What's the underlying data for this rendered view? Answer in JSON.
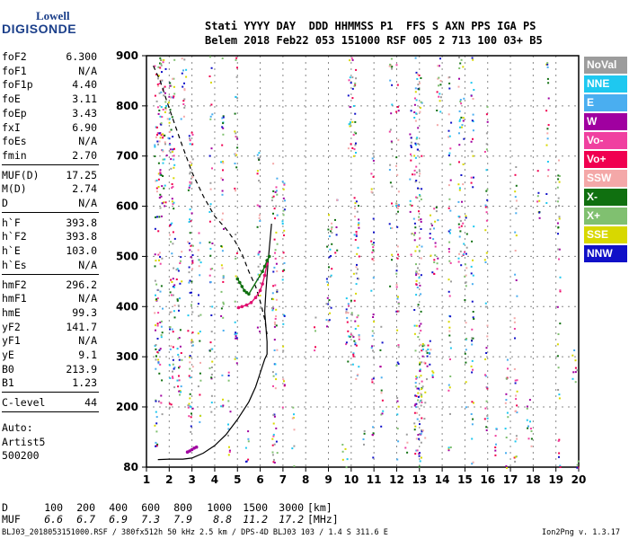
{
  "logo": {
    "line1": "Lowell",
    "line2": "DIGISONDE"
  },
  "header": {
    "line1": "Stati YYYY DAY  DDD HHMMSS P1  FFS S AXN PPS IGA PS",
    "line2": "Belem 2018 Feb22 053 151000 RSF 005 2 713 100 03+ B5"
  },
  "params": [
    [
      {
        "label": "foF2",
        "value": "6.300"
      },
      {
        "label": "foF1",
        "value": "N/A"
      },
      {
        "label": "foF1p",
        "value": "4.40"
      },
      {
        "label": "foE",
        "value": "3.11"
      },
      {
        "label": "foEp",
        "value": "3.43"
      },
      {
        "label": "fxI",
        "value": "6.90"
      },
      {
        "label": "foEs",
        "value": "N/A"
      },
      {
        "label": "fmin",
        "value": "2.70"
      }
    ],
    [
      {
        "label": "MUF(D)",
        "value": "17.25"
      },
      {
        "label": "M(D)",
        "value": "2.74"
      },
      {
        "label": "D",
        "value": "N/A"
      }
    ],
    [
      {
        "label": "h`F",
        "value": "393.8"
      },
      {
        "label": "h`F2",
        "value": "393.8"
      },
      {
        "label": "h`E",
        "value": "103.0"
      },
      {
        "label": "h`Es",
        "value": "N/A"
      }
    ],
    [
      {
        "label": "hmF2",
        "value": "296.2"
      },
      {
        "label": "hmF1",
        "value": "N/A"
      },
      {
        "label": "hmE",
        "value": "99.3"
      },
      {
        "label": "yF2",
        "value": "141.7"
      },
      {
        "label": "yF1",
        "value": "N/A"
      },
      {
        "label": "yE",
        "value": "9.1"
      },
      {
        "label": "B0",
        "value": "213.9"
      },
      {
        "label": "B1",
        "value": "1.23"
      }
    ],
    [
      {
        "label": "C-level",
        "value": "44"
      }
    ]
  ],
  "autoscaling": {
    "line1": "Auto:",
    "line2": "Artist5",
    "line3": "500200"
  },
  "legend": [
    {
      "label": "NoVal",
      "color": "#9c9c9c"
    },
    {
      "label": "NNE",
      "color": "#1ec8f0"
    },
    {
      "label": "E",
      "color": "#4aaef0"
    },
    {
      "label": "W",
      "color": "#a000a0"
    },
    {
      "label": "Vo-",
      "color": "#f040a0"
    },
    {
      "label": "Vo+",
      "color": "#f00050"
    },
    {
      "label": "SSW",
      "color": "#f4a8a8"
    },
    {
      "label": "X-",
      "color": "#107010"
    },
    {
      "label": "X+",
      "color": "#80c070"
    },
    {
      "label": "SSE",
      "color": "#d8d800"
    },
    {
      "label": "NNW",
      "color": "#1010c8"
    }
  ],
  "mufTable": {
    "dLabel": "D",
    "mufLabel": "MUF",
    "distances": [
      "100",
      "200",
      "400",
      "600",
      "800",
      "1000",
      "1500",
      "3000"
    ],
    "dUnit": "[km]",
    "mufs": [
      "6.6",
      "6.7",
      "6.9",
      "7.3",
      "7.9",
      "8.8",
      "11.2",
      "17.2"
    ],
    "mufUnit": "[MHz]"
  },
  "status": {
    "left": "BLJ03_2018053151000.RSF / 380fx512h 50 kHz 2.5 km / DPS-4D BLJ03 103 / 1.4 S 311.6 E",
    "right": "Ion2Png v. 1.3.17"
  },
  "chart_data": {
    "type": "scatter",
    "title": "",
    "xlabel": "",
    "ylabel": "",
    "xlim": [
      1,
      20
    ],
    "ylim": [
      80,
      900
    ],
    "xticks": [
      1,
      2,
      3,
      4,
      5,
      6,
      7,
      8,
      9,
      10,
      11,
      12,
      13,
      14,
      15,
      16,
      17,
      18,
      19,
      20
    ],
    "yticks": [
      80,
      200,
      300,
      400,
      500,
      600,
      700,
      800,
      900
    ],
    "grid": true,
    "legend_position": "right",
    "series": [
      {
        "name": "fitted-profile (solid)",
        "x": [
          1.5,
          2.0,
          2.6,
          3.0,
          3.5,
          4.0,
          4.5,
          5.0,
          5.5,
          5.8,
          6.0,
          6.2,
          6.3,
          6.3,
          6.25,
          6.2,
          6.25,
          6.35,
          6.5
        ],
        "y": [
          95,
          96,
          96,
          98,
          108,
          123,
          145,
          175,
          210,
          240,
          268,
          295,
          305,
          330,
          360,
          390,
          430,
          490,
          565
        ]
      },
      {
        "name": "extrapolated-profile (dashed)",
        "x": [
          1.3,
          1.6,
          2.0,
          2.5,
          3.0,
          3.5,
          4.0,
          4.5,
          4.9,
          5.2,
          5.5,
          5.8,
          6.0,
          6.2,
          6.3
        ],
        "y": [
          880,
          850,
          795,
          730,
          668,
          620,
          580,
          555,
          530,
          505,
          470,
          440,
          410,
          375,
          345
        ]
      },
      {
        "name": "F-trace",
        "x": [
          5.05,
          5.2,
          5.4,
          5.6,
          5.8,
          6.0,
          6.1,
          6.2,
          6.3
        ],
        "y": [
          398,
          400,
          403,
          408,
          418,
          432,
          445,
          462,
          485
        ]
      },
      {
        "name": "F-trace-X",
        "x": [
          5.0,
          5.1,
          5.2,
          5.3,
          5.4,
          5.5,
          6.1,
          6.2,
          6.3,
          6.4
        ],
        "y": [
          455,
          448,
          440,
          432,
          428,
          425,
          470,
          480,
          492,
          500
        ]
      },
      {
        "name": "E-trace",
        "x": [
          2.8,
          2.9,
          3.0,
          3.1,
          3.2
        ],
        "y": [
          110,
          112,
          115,
          118,
          120
        ]
      }
    ]
  }
}
